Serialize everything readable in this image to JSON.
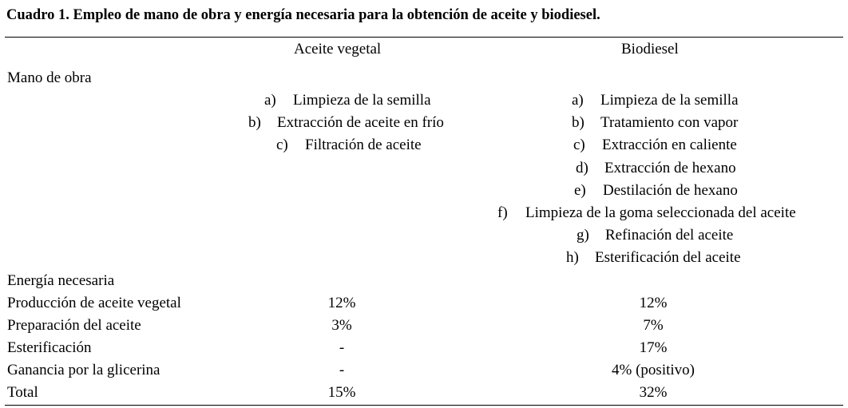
{
  "title": "Cuadro 1. Empleo de mano de obra y energía necesaria para la obtención de aceite y biodiesel.",
  "columns": {
    "aceite": "Aceite vegetal",
    "biodiesel": "Biodiesel"
  },
  "sections": {
    "mano_de_obra": "Mano de obra",
    "energia": "Energía necesaria"
  },
  "aceite_steps": [
    {
      "letter": "a)",
      "text": "Limpieza de la semilla"
    },
    {
      "letter": "b)",
      "text": "Extracción de aceite en frío"
    },
    {
      "letter": "c)",
      "text": "Filtración de aceite"
    }
  ],
  "biodiesel_steps": [
    {
      "letter": "a)",
      "text": "Limpieza de la semilla"
    },
    {
      "letter": "b)",
      "text": "Tratamiento con vapor"
    },
    {
      "letter": "c)",
      "text": "Extracción en caliente"
    },
    {
      "letter": "d)",
      "text": "Extracción de hexano"
    },
    {
      "letter": "e)",
      "text": "Destilación de hexano"
    },
    {
      "letter": "f)",
      "text": "Limpieza de la goma seleccionada del aceite"
    },
    {
      "letter": "g)",
      "text": "Refinación del aceite"
    },
    {
      "letter": "h)",
      "text": "Esterificación del aceite"
    }
  ],
  "energy_rows": [
    {
      "label": "Producción de aceite vegetal",
      "aceite": "12%",
      "biodiesel": "12%"
    },
    {
      "label": "Preparación del aceite",
      "aceite": "3%",
      "biodiesel": "7%"
    },
    {
      "label": "Esterificación",
      "aceite": "-",
      "biodiesel": "17%"
    },
    {
      "label": "Ganancia por la glicerina",
      "aceite": "-",
      "biodiesel": "4% (positivo)"
    },
    {
      "label": "Total",
      "aceite": "15%",
      "biodiesel": "32%"
    }
  ]
}
